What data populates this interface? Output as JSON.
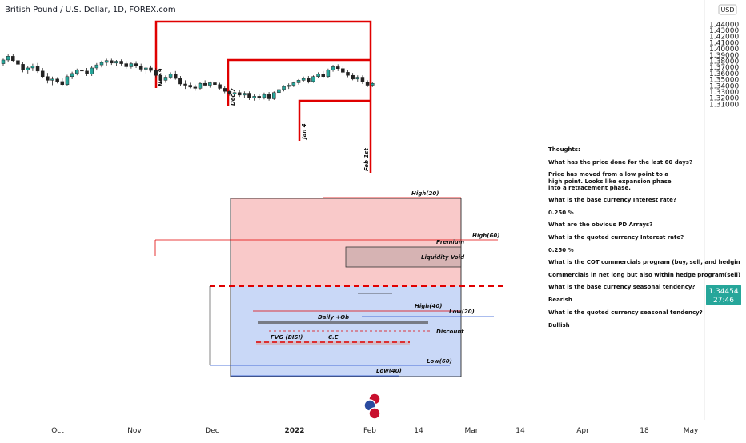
{
  "header": {
    "title": "British Pound / U.S. Dollar, 1D, FOREX.com"
  },
  "price_axis": {
    "currency": "USD",
    "ticks": [
      "1.44000",
      "1.43000",
      "1.42000",
      "1.41000",
      "1.40000",
      "1.39000",
      "1.38000",
      "1.37000",
      "1.36000",
      "1.35000",
      "1.34000",
      "1.33000",
      "1.32000",
      "1.31000"
    ],
    "current_price": "1.34454",
    "countdown": "27:46"
  },
  "time_axis": {
    "ticks": [
      "Oct",
      "Nov",
      "Dec",
      "2022",
      "Feb",
      "14",
      "Mar",
      "14",
      "Apr",
      "18",
      "May"
    ]
  },
  "colors": {
    "up": "#26a69a",
    "down": "#222222",
    "red": "#e00000",
    "premium_zone": "#f9c9c9",
    "discount_zone": "#c9d8f7",
    "price_badge": "#26a69a"
  },
  "annotations": {
    "dates": [
      "Nov 9",
      "Dec 7",
      "Jan 4",
      "Feb 1st"
    ],
    "levels": {
      "high20": "High(20)",
      "high60": "High(60)",
      "premium": "Premium",
      "liquidity_void": "Liquidity Void",
      "high40": "High(40)",
      "low20": "Low(20)",
      "daily_ob": "Daily +Ob",
      "discount": "Discount",
      "fvg": "FVG (BISI)",
      "ce": "C.E",
      "low60": "Low(60)",
      "low40": "Low(40)"
    }
  },
  "notes": [
    "Thoughts:",
    "What has the price done for the last 60 days?",
    "Price has moved from a low point to a",
    "high point. Looks like expansion phase",
    "into a retracement phase.",
    "What is the base currency Interest rate?",
    "0.250 %",
    "What are the obvious PD Arrays?",
    "What is the quoted currency Interest rate?",
    "0.250 %",
    "What is the COT commercials program (buy, sell, and hedgin",
    "Commercials in net long but also within hedge program(sell)",
    "What is the base currency seasonal tendency?",
    "Bearish",
    "What is the quoted currency seasonal tendency?",
    "Bullish"
  ],
  "chart_data": {
    "type": "candlestick",
    "title": "British Pound / U.S. Dollar, 1D, FOREX.com",
    "ylim": [
      1.305,
      1.44
    ],
    "ohlc": [
      [
        1.376,
        1.384,
        1.372,
        1.382
      ],
      [
        1.382,
        1.391,
        1.378,
        1.388
      ],
      [
        1.388,
        1.392,
        1.378,
        1.381
      ],
      [
        1.381,
        1.386,
        1.372,
        1.375
      ],
      [
        1.375,
        1.379,
        1.362,
        1.366
      ],
      [
        1.366,
        1.372,
        1.36,
        1.369
      ],
      [
        1.369,
        1.376,
        1.364,
        1.372
      ],
      [
        1.372,
        1.377,
        1.361,
        1.364
      ],
      [
        1.364,
        1.369,
        1.352,
        1.355
      ],
      [
        1.355,
        1.361,
        1.344,
        1.349
      ],
      [
        1.349,
        1.355,
        1.341,
        1.351
      ],
      [
        1.351,
        1.354,
        1.344,
        1.347
      ],
      [
        1.347,
        1.352,
        1.339,
        1.342
      ],
      [
        1.342,
        1.358,
        1.34,
        1.355
      ],
      [
        1.355,
        1.363,
        1.351,
        1.36
      ],
      [
        1.36,
        1.368,
        1.357,
        1.366
      ],
      [
        1.366,
        1.371,
        1.361,
        1.364
      ],
      [
        1.364,
        1.369,
        1.356,
        1.359
      ],
      [
        1.359,
        1.372,
        1.356,
        1.369
      ],
      [
        1.369,
        1.377,
        1.365,
        1.374
      ],
      [
        1.374,
        1.381,
        1.37,
        1.378
      ],
      [
        1.378,
        1.384,
        1.373,
        1.381
      ],
      [
        1.381,
        1.384,
        1.374,
        1.377
      ],
      [
        1.377,
        1.382,
        1.372,
        1.38
      ],
      [
        1.38,
        1.383,
        1.373,
        1.376
      ],
      [
        1.376,
        1.38,
        1.368,
        1.371
      ],
      [
        1.371,
        1.379,
        1.368,
        1.376
      ],
      [
        1.376,
        1.38,
        1.369,
        1.372
      ],
      [
        1.372,
        1.376,
        1.363,
        1.367
      ],
      [
        1.367,
        1.371,
        1.36,
        1.369
      ],
      [
        1.369,
        1.373,
        1.362,
        1.365
      ],
      [
        1.365,
        1.369,
        1.354,
        1.357
      ],
      [
        1.357,
        1.361,
        1.346,
        1.349
      ],
      [
        1.349,
        1.357,
        1.345,
        1.354
      ],
      [
        1.354,
        1.362,
        1.351,
        1.359
      ],
      [
        1.359,
        1.364,
        1.35,
        1.352
      ],
      [
        1.352,
        1.356,
        1.34,
        1.343
      ],
      [
        1.343,
        1.349,
        1.335,
        1.341
      ],
      [
        1.341,
        1.345,
        1.336,
        1.338
      ],
      [
        1.338,
        1.342,
        1.332,
        1.336
      ],
      [
        1.336,
        1.346,
        1.334,
        1.344
      ],
      [
        1.344,
        1.349,
        1.339,
        1.341
      ],
      [
        1.341,
        1.347,
        1.337,
        1.345
      ],
      [
        1.345,
        1.349,
        1.339,
        1.342
      ],
      [
        1.342,
        1.345,
        1.334,
        1.336
      ],
      [
        1.336,
        1.339,
        1.328,
        1.331
      ],
      [
        1.331,
        1.334,
        1.324,
        1.327
      ],
      [
        1.327,
        1.331,
        1.322,
        1.329
      ],
      [
        1.329,
        1.333,
        1.322,
        1.325
      ],
      [
        1.325,
        1.331,
        1.32,
        1.328
      ],
      [
        1.328,
        1.331,
        1.317,
        1.32
      ],
      [
        1.32,
        1.326,
        1.316,
        1.323
      ],
      [
        1.323,
        1.327,
        1.317,
        1.321
      ],
      [
        1.321,
        1.329,
        1.318,
        1.326
      ],
      [
        1.326,
        1.33,
        1.316,
        1.319
      ],
      [
        1.319,
        1.331,
        1.317,
        1.329
      ],
      [
        1.329,
        1.336,
        1.327,
        1.334
      ],
      [
        1.334,
        1.341,
        1.331,
        1.339
      ],
      [
        1.339,
        1.344,
        1.335,
        1.341
      ],
      [
        1.341,
        1.347,
        1.338,
        1.345
      ],
      [
        1.345,
        1.351,
        1.342,
        1.349
      ],
      [
        1.349,
        1.355,
        1.346,
        1.352
      ],
      [
        1.352,
        1.356,
        1.344,
        1.347
      ],
      [
        1.347,
        1.357,
        1.345,
        1.355
      ],
      [
        1.355,
        1.362,
        1.352,
        1.359
      ],
      [
        1.359,
        1.364,
        1.352,
        1.355
      ],
      [
        1.355,
        1.368,
        1.353,
        1.366
      ],
      [
        1.366,
        1.374,
        1.363,
        1.371
      ],
      [
        1.371,
        1.375,
        1.364,
        1.368
      ],
      [
        1.368,
        1.372,
        1.359,
        1.362
      ],
      [
        1.362,
        1.365,
        1.354,
        1.357
      ],
      [
        1.357,
        1.361,
        1.349,
        1.351
      ],
      [
        1.351,
        1.357,
        1.347,
        1.354
      ],
      [
        1.354,
        1.357,
        1.343,
        1.346
      ],
      [
        1.346,
        1.349,
        1.338,
        1.341
      ],
      [
        1.341,
        1.346,
        1.338,
        1.344
      ]
    ]
  }
}
